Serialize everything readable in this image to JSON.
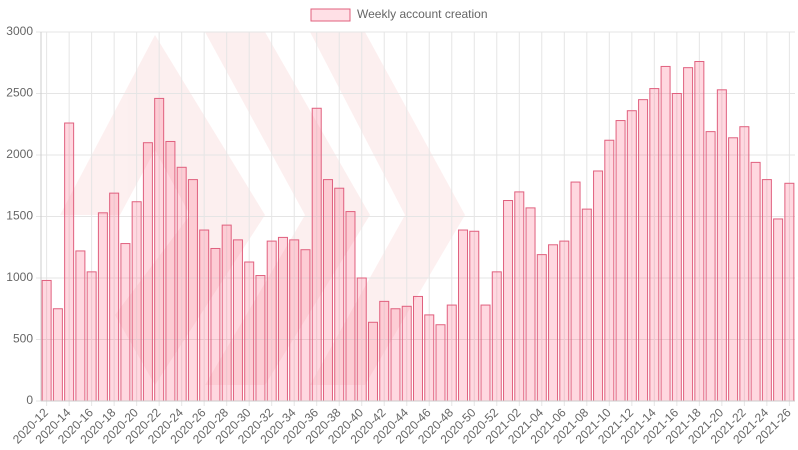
{
  "chart_data": {
    "type": "bar",
    "series": [
      {
        "name": "Weekly account creation",
        "color": "#e0607e",
        "values": [
          980,
          750,
          2260,
          1220,
          1050,
          1530,
          1690,
          1280,
          1620,
          2100,
          2460,
          2110,
          1900,
          1800,
          1390,
          1240,
          1430,
          1310,
          1130,
          1020,
          1300,
          1330,
          1310,
          1230,
          2380,
          1800,
          1730,
          1540,
          1000,
          640,
          810,
          750,
          770,
          850,
          700,
          620,
          780,
          1390,
          1380,
          780,
          1050,
          1630,
          1700,
          1570,
          1190,
          1270,
          1300,
          1780,
          1560,
          1870,
          2120,
          2280,
          2360,
          2450,
          2540,
          2720,
          2500,
          2710,
          2760,
          2190,
          2530,
          2140,
          2230,
          1940,
          1800,
          1480,
          1770
        ]
      }
    ],
    "categories": [
      "2020-12",
      null,
      "2020-14",
      null,
      "2020-16",
      null,
      "2020-18",
      null,
      "2020-20",
      null,
      "2020-22",
      null,
      "2020-24",
      null,
      "2020-26",
      null,
      "2020-28",
      null,
      "2020-30",
      null,
      "2020-32",
      null,
      "2020-34",
      null,
      "2020-36",
      null,
      "2020-38",
      null,
      "2020-40",
      null,
      "2020-42",
      null,
      "2020-44",
      null,
      "2020-46",
      null,
      "2020-48",
      null,
      "2020-50",
      null,
      "2020-52",
      null,
      "2021-02",
      null,
      "2021-04",
      null,
      "2021-06",
      null,
      "2021-08",
      null,
      "2021-10",
      null,
      "2021-12",
      null,
      "2021-14",
      null,
      "2021-16",
      null,
      "2021-18",
      null,
      "2021-20",
      null,
      "2021-22",
      null,
      "2021-24",
      null,
      "2021-26"
    ],
    "ylim": [
      0,
      3000
    ],
    "yticks": [
      0,
      500,
      1000,
      1500,
      2000,
      2500,
      3000
    ],
    "grid": true,
    "legend": "top"
  }
}
